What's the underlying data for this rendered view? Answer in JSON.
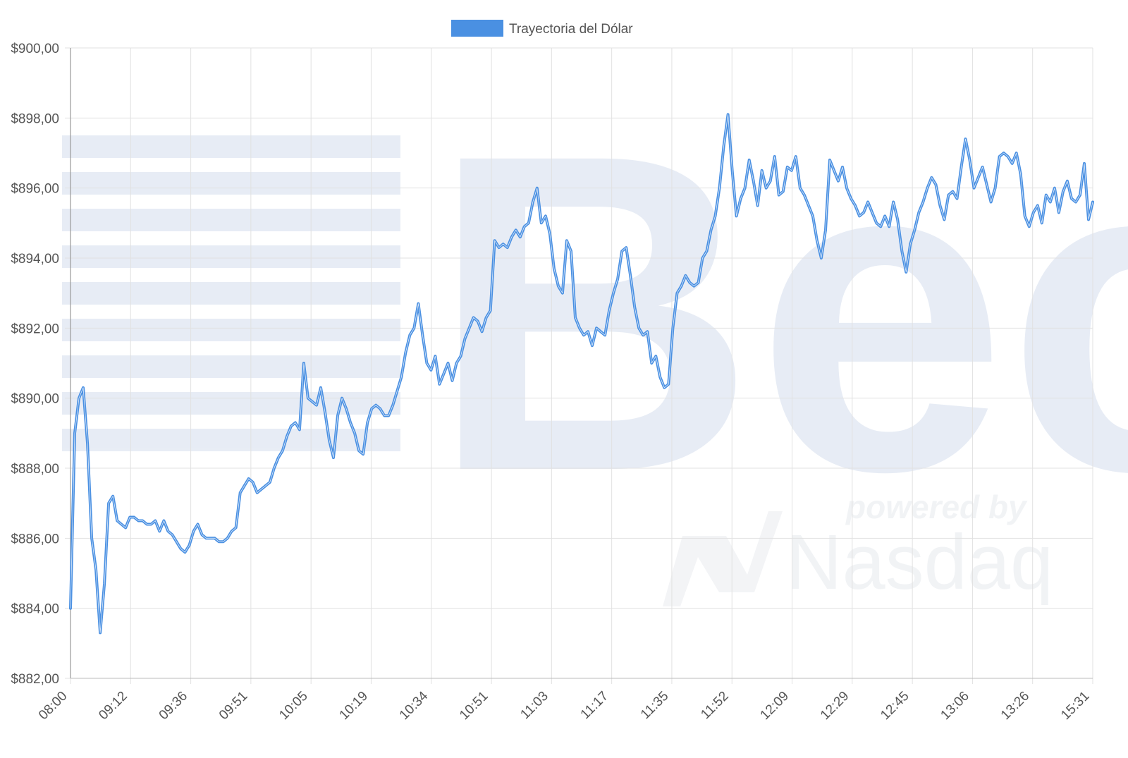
{
  "chart_data": {
    "type": "line",
    "title": "",
    "xlabel": "",
    "ylabel": "",
    "legend": {
      "position": "top-center"
    },
    "grid": true,
    "ylim": [
      882,
      900
    ],
    "x_tick_labels": [
      "08:00",
      "09:12",
      "09:36",
      "09:51",
      "10:05",
      "10:19",
      "10:34",
      "10:51",
      "11:03",
      "11:17",
      "11:35",
      "11:52",
      "12:09",
      "12:29",
      "12:45",
      "13:06",
      "13:26",
      "15:31"
    ],
    "y_tick_labels": [
      "$882,00",
      "$884,00",
      "$886,00",
      "$888,00",
      "$890,00",
      "$892,00",
      "$894,00",
      "$896,00",
      "$898,00",
      "$900,00"
    ],
    "y_tick_values": [
      882,
      884,
      886,
      888,
      890,
      892,
      894,
      896,
      898,
      900
    ],
    "series": [
      {
        "name": "Trayectoria del Dólar",
        "color": "#4a90e2",
        "values": [
          884.0,
          889.0,
          890.0,
          890.3,
          888.7,
          886.0,
          885.1,
          883.3,
          884.7,
          887.0,
          887.2,
          886.5,
          886.4,
          886.3,
          886.6,
          886.6,
          886.5,
          886.5,
          886.4,
          886.4,
          886.5,
          886.2,
          886.5,
          886.2,
          886.1,
          885.9,
          885.7,
          885.6,
          885.8,
          886.2,
          886.4,
          886.1,
          886.0,
          886.0,
          886.0,
          885.9,
          885.9,
          886.0,
          886.2,
          886.3,
          887.3,
          887.5,
          887.7,
          887.6,
          887.3,
          887.4,
          887.5,
          887.6,
          888.0,
          888.3,
          888.5,
          888.9,
          889.2,
          889.3,
          889.1,
          891.0,
          890.0,
          889.9,
          889.8,
          890.3,
          889.6,
          888.8,
          888.3,
          889.5,
          890.0,
          889.7,
          889.3,
          889.0,
          888.5,
          888.4,
          889.3,
          889.7,
          889.8,
          889.7,
          889.5,
          889.5,
          889.8,
          890.2,
          890.6,
          891.3,
          891.8,
          892.0,
          892.7,
          891.8,
          891.0,
          890.8,
          891.2,
          890.4,
          890.7,
          891.0,
          890.5,
          891.0,
          891.2,
          891.7,
          892.0,
          892.3,
          892.2,
          891.9,
          892.3,
          892.5,
          894.5,
          894.3,
          894.4,
          894.3,
          894.6,
          894.8,
          894.6,
          894.9,
          895.0,
          895.6,
          896.0,
          895.0,
          895.2,
          894.7,
          893.7,
          893.2,
          893.0,
          894.5,
          894.2,
          892.3,
          892.0,
          891.8,
          891.9,
          891.5,
          892.0,
          891.9,
          891.8,
          892.5,
          893.0,
          893.4,
          894.2,
          894.3,
          893.5,
          892.6,
          892.0,
          891.8,
          891.9,
          891.0,
          891.2,
          890.6,
          890.3,
          890.4,
          892.0,
          893.0,
          893.2,
          893.5,
          893.3,
          893.2,
          893.3,
          894.0,
          894.2,
          894.8,
          895.2,
          896.0,
          897.2,
          898.1,
          896.5,
          895.2,
          895.7,
          896.0,
          896.8,
          896.2,
          895.5,
          896.5,
          896.0,
          896.2,
          896.9,
          895.8,
          895.9,
          896.6,
          896.5,
          896.9,
          896.0,
          895.8,
          895.5,
          895.2,
          894.5,
          894.0,
          894.8,
          896.8,
          896.5,
          896.2,
          896.6,
          896.0,
          895.7,
          895.5,
          895.2,
          895.3,
          895.6,
          895.3,
          895.0,
          894.9,
          895.2,
          894.9,
          895.6,
          895.1,
          894.2,
          893.6,
          894.4,
          894.8,
          895.3,
          895.6,
          896.0,
          896.3,
          896.1,
          895.5,
          895.1,
          895.8,
          895.9,
          895.7,
          896.6,
          897.4,
          896.8,
          896.0,
          896.3,
          896.6,
          896.1,
          895.6,
          896.0,
          896.9,
          897.0,
          896.9,
          896.7,
          897.0,
          896.4,
          895.2,
          894.9,
          895.3,
          895.5,
          895.0,
          895.8,
          895.6,
          896.0,
          895.3,
          895.9,
          896.2,
          895.7,
          895.6,
          895.8,
          896.7,
          895.1,
          895.6
        ]
      }
    ]
  }
}
